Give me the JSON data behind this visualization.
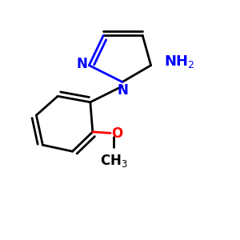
{
  "background_color": "#ffffff",
  "bond_color": "#000000",
  "n_color": "#0000ff",
  "o_color": "#ff0000",
  "bond_width": 2.0,
  "dbo": 0.018,
  "figsize": [
    3.0,
    3.0
  ],
  "dpi": 100,
  "xlim": [
    0.0,
    1.0
  ],
  "ylim": [
    0.0,
    1.0
  ]
}
